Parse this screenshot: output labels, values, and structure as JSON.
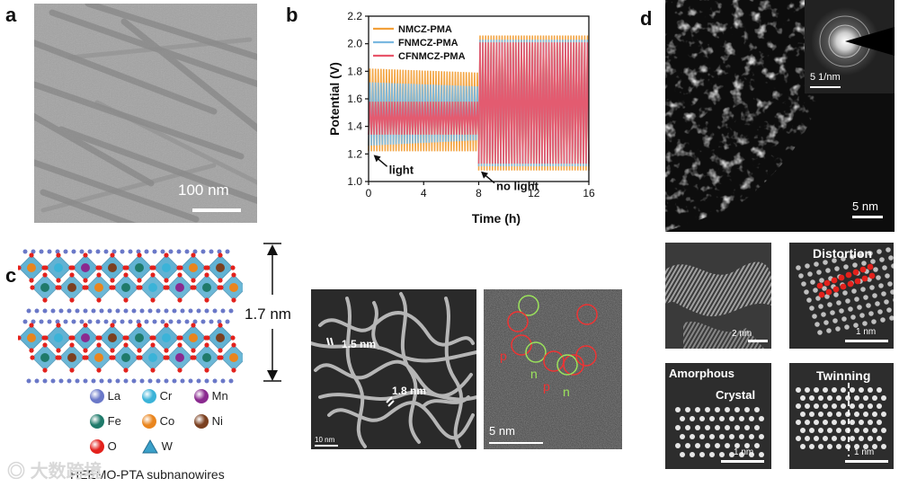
{
  "panels": {
    "a": {
      "label": "a",
      "scale_bar": "100 nm"
    },
    "b": {
      "label": "b"
    },
    "c": {
      "label": "c",
      "height_label": "1.7 nm",
      "legend": [
        {
          "symbol": "La",
          "color": "#6a78c8"
        },
        {
          "symbol": "Cr",
          "color": "#3bb3d8"
        },
        {
          "symbol": "Mn",
          "color": "#8a2a8f"
        },
        {
          "symbol": "Fe",
          "color": "#1f7a6a"
        },
        {
          "symbol": "Co",
          "color": "#e9851e"
        },
        {
          "symbol": "Ni",
          "color": "#7b4020"
        },
        {
          "symbol": "O",
          "color": "#e3211c"
        },
        {
          "symbol": "W",
          "color": "#3aa0c9"
        }
      ],
      "caption": "HEEMO-PTA subnanowires",
      "watermark": "大数跨境",
      "stem1": {
        "label1": "1.5 nm",
        "label2": "1.8 nm",
        "scale": "10 nm"
      },
      "stem2": {
        "scale": "5 nm",
        "tags": [
          "p",
          "n",
          "p",
          "n"
        ]
      }
    },
    "d": {
      "label": "d",
      "main_scale": "5 nm",
      "saed_scale": "5 1/nm",
      "sub1_scale": "2 nm",
      "sub2_title": "Distortion",
      "sub2_scale": "1 nm",
      "sub3_title1": "Amorphous",
      "sub3_title2": "Crystal",
      "sub3_scale": "1 nm",
      "sub4_title": "Twinning",
      "sub4_scale": "1 nm"
    }
  },
  "chart_data": {
    "type": "line",
    "xlabel": "Time (h)",
    "ylabel": "Potential (V)",
    "xlim": [
      0,
      16
    ],
    "ylim": [
      1.0,
      2.2
    ],
    "xticks": [
      0,
      4,
      8,
      12,
      16
    ],
    "yticks": [
      1.0,
      1.2,
      1.4,
      1.6,
      1.8,
      2.0,
      2.2
    ],
    "legend_position": "top-left",
    "cycles": 40,
    "series": [
      {
        "name": "NMCZ-PMA",
        "color": "#f2a03a",
        "light": {
          "time": [
            0,
            8
          ],
          "upper": [
            1.82,
            1.79
          ],
          "lower": [
            1.22,
            1.22
          ]
        },
        "no_light": {
          "time": [
            8,
            16
          ],
          "upper": [
            2.06,
            2.06
          ],
          "lower": [
            1.08,
            1.08
          ]
        }
      },
      {
        "name": "FNMCZ-PMA",
        "color": "#7ab8e0",
        "light": {
          "time": [
            0,
            8
          ],
          "upper": [
            1.72,
            1.69
          ],
          "lower": [
            1.26,
            1.3
          ]
        },
        "no_light": {
          "time": [
            8,
            16
          ],
          "upper": [
            2.03,
            2.03
          ],
          "lower": [
            1.11,
            1.11
          ]
        }
      },
      {
        "name": "CFNMCZ-PMA",
        "color": "#e8556a",
        "light": {
          "time": [
            0,
            8
          ],
          "upper": [
            1.58,
            1.58
          ],
          "lower": [
            1.34,
            1.34
          ]
        },
        "no_light": {
          "time": [
            8,
            16
          ],
          "upper": [
            2.01,
            2.01
          ],
          "lower": [
            1.13,
            1.13
          ]
        }
      }
    ],
    "annotations": [
      {
        "text": "light",
        "x": 0.3,
        "y": 1.2
      },
      {
        "text": "no light",
        "x": 8.1,
        "y": 1.08
      }
    ]
  }
}
